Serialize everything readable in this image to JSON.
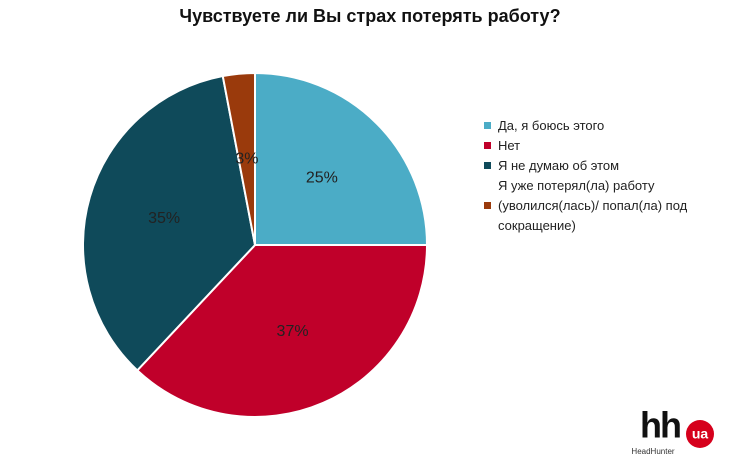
{
  "chart_data": {
    "type": "pie",
    "title": "Чувствуете ли Вы страх потерять работу?",
    "categories": [
      "Да, я боюсь этого",
      "Нет",
      "Я не думаю об этом",
      "Я уже потерял(ла) работу (уволился(лась)/ попал(ла) под сокращение)"
    ],
    "values": [
      25,
      37,
      35,
      3
    ],
    "value_labels": [
      "25%",
      "37%",
      "35%",
      "3%"
    ],
    "colors": [
      "#4bacc6",
      "#c0002a",
      "#0f4a5a",
      "#9a3a0c"
    ],
    "legend": "right"
  },
  "logo": {
    "mark": "hh",
    "badge": "ua",
    "caption": "HeadHunter"
  }
}
